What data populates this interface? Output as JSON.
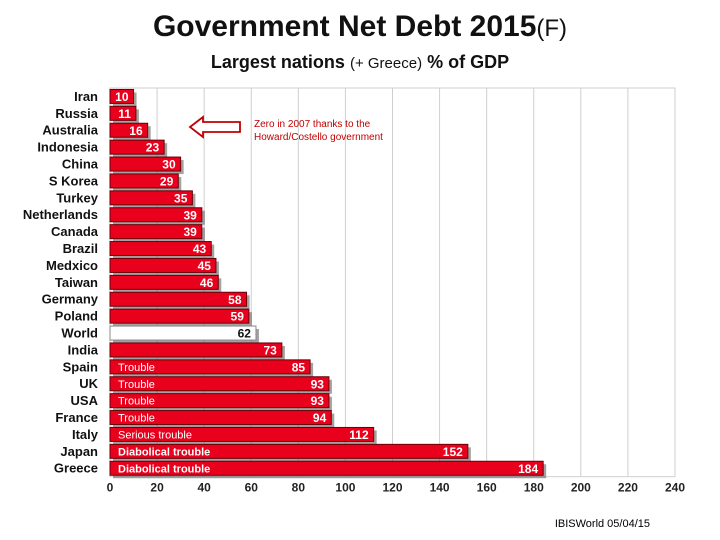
{
  "title": {
    "main": "Government Net Debt 2015",
    "suffix": "(F)"
  },
  "subtitle": {
    "main": "Largest nations",
    "paren": "(+ Greece)",
    "unit": "% of GDP"
  },
  "annotation": {
    "line1": "Zero in 2007 thanks to the",
    "line2": "Howard/Costello government"
  },
  "footer": "IBISWorld 05/04/15",
  "colors": {
    "bar": "#e8001c",
    "world_bar": "#ffffff",
    "grid": "#cfcfcf",
    "annotation": "#c00000",
    "arrow": "#c00000"
  },
  "chart_data": {
    "type": "bar",
    "orientation": "horizontal",
    "categories": [
      "Iran",
      "Russia",
      "Australia",
      "Indonesia",
      "China",
      "S Korea",
      "Turkey",
      "Netherlands",
      "Canada",
      "Brazil",
      "Medxico",
      "Taiwan",
      "Germany",
      "Poland",
      "World",
      "India",
      "Spain",
      "UK",
      "USA",
      "France",
      "Italy",
      "Japan",
      "Greece"
    ],
    "values": [
      10,
      11,
      16,
      23,
      30,
      29,
      35,
      39,
      39,
      43,
      45,
      46,
      58,
      59,
      62,
      73,
      85,
      93,
      93,
      94,
      112,
      152,
      184
    ],
    "bar_notes": [
      "",
      "",
      "",
      "",
      "",
      "",
      "",
      "",
      "",
      "",
      "",
      "",
      "",
      "",
      "",
      "",
      "Trouble",
      "Trouble",
      "Trouble",
      "Trouble",
      "Serious trouble",
      "Diabolical trouble",
      "Diabolical trouble"
    ],
    "highlight_category": "World",
    "xlim": [
      0,
      240
    ],
    "xticks": [
      0,
      20,
      40,
      60,
      80,
      100,
      120,
      140,
      160,
      180,
      200,
      220,
      240
    ],
    "grid": true,
    "xlabel": "",
    "ylabel": ""
  }
}
